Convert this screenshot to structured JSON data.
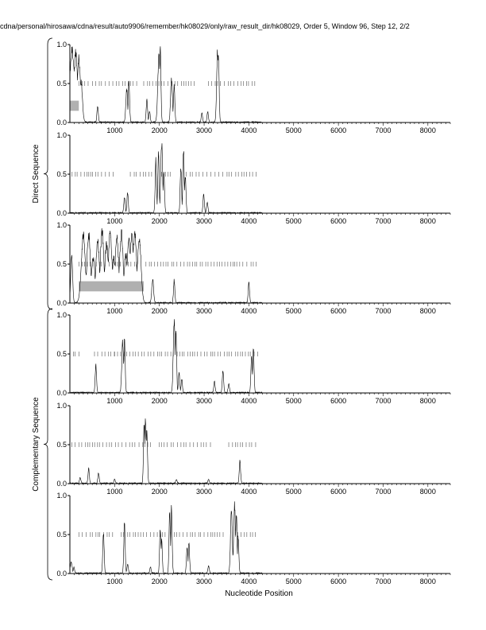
{
  "title": "cdna/personal/hirosawa/cdna/result/auto9906/remember/hk08029/only/raw_result_dir/hk08029, Order 5, Window 96, Step 12, 2/2",
  "group_labels": [
    "Direct Sequence",
    "Complementary Sequence"
  ],
  "colors": {
    "line": "#000000",
    "highlight": "#b0b0b0",
    "marks": "#555555"
  },
  "chart_data": {
    "type": "line",
    "title": "cdna/personal/hirosawa/cdna/result/auto9906/remember/hk08029/only/raw_result_dir/hk08029, Order 5, Window 96, Step 12, 2/2",
    "xlabel": "Nucleotide Position",
    "ylabel": "",
    "xlim": [
      0,
      8500
    ],
    "ylim": [
      0,
      1
    ],
    "x_ticks": [
      1000,
      2000,
      3000,
      4000,
      5000,
      6000,
      7000,
      8000
    ],
    "y_ticks": [
      "0.0",
      "0.5",
      "1.0"
    ],
    "grid": false,
    "panels": [
      {
        "group": "Direct Sequence",
        "highlight": [
          {
            "x0": 0,
            "x1": 200,
            "y0": 0.15,
            "y1": 0.28
          }
        ],
        "mark_ranges": [
          [
            200,
            1550
          ],
          [
            1650,
            2850
          ],
          [
            3100,
            4200
          ]
        ],
        "peaks": [
          [
            50,
            0.98,
            50
          ],
          [
            130,
            0.95,
            40
          ],
          [
            200,
            0.9,
            35
          ],
          [
            250,
            0.55,
            30
          ],
          [
            620,
            0.22,
            15
          ],
          [
            1270,
            0.45,
            20
          ],
          [
            1320,
            0.55,
            15
          ],
          [
            1720,
            0.3,
            15
          ],
          [
            1780,
            0.15,
            15
          ],
          [
            1990,
            0.92,
            25
          ],
          [
            2020,
            0.98,
            15
          ],
          [
            2270,
            0.6,
            20
          ],
          [
            2330,
            0.52,
            15
          ],
          [
            2950,
            0.12,
            15
          ],
          [
            3080,
            0.14,
            15
          ],
          [
            3300,
            0.98,
            20
          ],
          [
            3320,
            0.9,
            15
          ]
        ]
      },
      {
        "group": "Direct Sequence",
        "highlight": [],
        "mark_ranges": [
          [
            50,
            1050
          ],
          [
            1350,
            1850
          ],
          [
            2050,
            2300
          ],
          [
            2600,
            4200
          ]
        ],
        "peaks": [
          [
            1220,
            0.22,
            15
          ],
          [
            1290,
            0.28,
            15
          ],
          [
            1920,
            0.72,
            15
          ],
          [
            1980,
            0.85,
            15
          ],
          [
            2050,
            0.98,
            20
          ],
          [
            2100,
            0.6,
            15
          ],
          [
            2480,
            0.65,
            15
          ],
          [
            2540,
            0.88,
            15
          ],
          [
            2580,
            0.5,
            15
          ],
          [
            2990,
            0.25,
            15
          ],
          [
            3070,
            0.15,
            15
          ]
        ]
      },
      {
        "group": "Direct Sequence",
        "highlight": [
          {
            "x0": 200,
            "x1": 1650,
            "y0": 0.15,
            "y1": 0.28
          }
        ],
        "mark_ranges": [
          [
            200,
            1550
          ],
          [
            1700,
            4200
          ]
        ],
        "peaks": [
          [
            40,
            0.7,
            20
          ],
          [
            300,
            0.92,
            45
          ],
          [
            420,
            0.95,
            40
          ],
          [
            520,
            0.6,
            40
          ],
          [
            620,
            0.85,
            40
          ],
          [
            720,
            0.98,
            40
          ],
          [
            820,
            0.8,
            40
          ],
          [
            900,
            0.95,
            40
          ],
          [
            980,
            0.6,
            40
          ],
          [
            1050,
            0.9,
            40
          ],
          [
            1150,
            0.95,
            40
          ],
          [
            1250,
            0.65,
            40
          ],
          [
            1320,
            0.85,
            40
          ],
          [
            1380,
            0.95,
            40
          ],
          [
            1450,
            0.98,
            40
          ],
          [
            1550,
            0.9,
            40
          ],
          [
            1850,
            0.32,
            20
          ],
          [
            2330,
            0.3,
            15
          ],
          [
            4000,
            0.28,
            15
          ]
        ]
      },
      {
        "group": "Complementary Sequence",
        "highlight": [],
        "mark_ranges": [
          [
            0,
            280
          ],
          [
            550,
            1000
          ],
          [
            1000,
            2800
          ],
          [
            2850,
            4200
          ]
        ],
        "peaks": [
          [
            580,
            0.38,
            15
          ],
          [
            1180,
            0.7,
            20
          ],
          [
            1220,
            0.72,
            15
          ],
          [
            2330,
            0.98,
            20
          ],
          [
            2370,
            0.88,
            15
          ],
          [
            2440,
            0.28,
            15
          ],
          [
            2500,
            0.18,
            15
          ],
          [
            3230,
            0.15,
            15
          ],
          [
            3420,
            0.3,
            15
          ],
          [
            3550,
            0.12,
            15
          ],
          [
            4060,
            0.5,
            15
          ],
          [
            4100,
            0.62,
            15
          ]
        ]
      },
      {
        "group": "Complementary Sequence",
        "highlight": [],
        "mark_ranges": [
          [
            0,
            1850
          ],
          [
            2000,
            3150
          ],
          [
            3550,
            4200
          ]
        ],
        "peaks": [
          [
            230,
            0.08,
            15
          ],
          [
            420,
            0.2,
            15
          ],
          [
            640,
            0.14,
            15
          ],
          [
            1000,
            0.05,
            15
          ],
          [
            1660,
            0.88,
            15
          ],
          [
            1690,
            0.92,
            15
          ],
          [
            1720,
            0.7,
            15
          ],
          [
            2380,
            0.05,
            15
          ],
          [
            3100,
            0.05,
            15
          ],
          [
            3800,
            0.3,
            15
          ]
        ]
      },
      {
        "group": "Complementary Sequence",
        "highlight": [],
        "mark_ranges": [
          [
            200,
            1000
          ],
          [
            1150,
            1750
          ],
          [
            1800,
            2150
          ],
          [
            2250,
            3450
          ],
          [
            3700,
            4200
          ]
        ],
        "peaks": [
          [
            30,
            0.15,
            20
          ],
          [
            90,
            0.08,
            15
          ],
          [
            750,
            0.58,
            15
          ],
          [
            1220,
            0.7,
            15
          ],
          [
            1290,
            0.12,
            15
          ],
          [
            1800,
            0.08,
            15
          ],
          [
            2020,
            0.62,
            15
          ],
          [
            2050,
            0.45,
            15
          ],
          [
            2230,
            0.88,
            15
          ],
          [
            2270,
            0.92,
            15
          ],
          [
            2620,
            0.38,
            15
          ],
          [
            2660,
            0.42,
            15
          ],
          [
            3100,
            0.1,
            15
          ],
          [
            3610,
            0.92,
            20
          ],
          [
            3680,
            0.96,
            20
          ],
          [
            3720,
            0.85,
            15
          ],
          [
            3760,
            0.5,
            15
          ]
        ]
      }
    ]
  }
}
